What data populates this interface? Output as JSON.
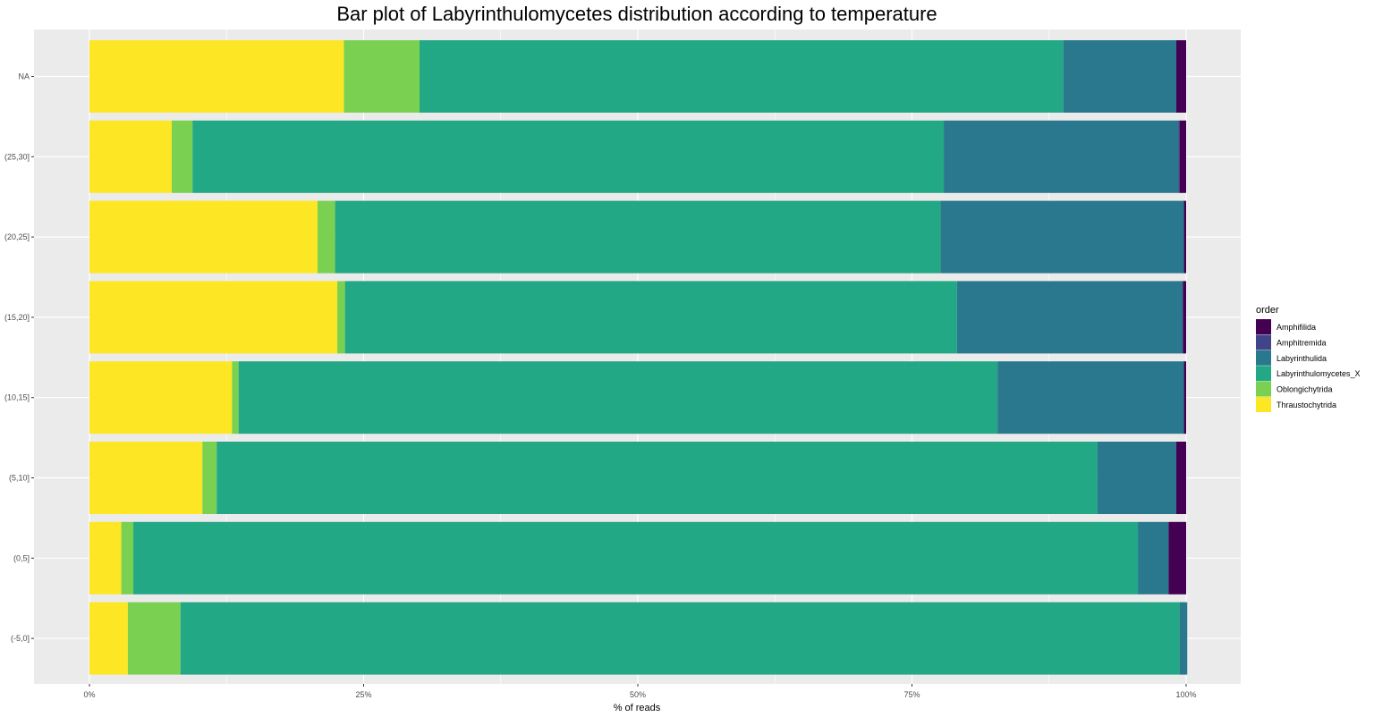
{
  "chart_data": {
    "type": "bar",
    "orientation": "horizontal",
    "stacked": true,
    "title": "Bar plot of Labyrinthulomycetes distribution according to temperature",
    "xlabel": "% of reads",
    "ylabel": "",
    "xlim": [
      0,
      1
    ],
    "x_ticks": [
      "0%",
      "25%",
      "50%",
      "75%",
      "100%"
    ],
    "grid": true,
    "legend_title": "order",
    "legend_position": "right",
    "categories": [
      "NA",
      "(25,30]",
      "(20,25]",
      "(15,20]",
      "(10,15]",
      "(5,10]",
      "(0,5]",
      "(-5,0]"
    ],
    "series": [
      {
        "name": "Thraustochytrida",
        "color": "#FDE725",
        "values": [
          0.232,
          0.075,
          0.208,
          0.226,
          0.13,
          0.103,
          0.029,
          0.035
        ]
      },
      {
        "name": "Oblongichytrida",
        "color": "#7AD151",
        "values": [
          0.069,
          0.019,
          0.016,
          0.007,
          0.006,
          0.013,
          0.011,
          0.048
        ]
      },
      {
        "name": "Labyrinthulomycetes_X",
        "color": "#22A884",
        "values": [
          0.587,
          0.685,
          0.552,
          0.558,
          0.692,
          0.803,
          0.916,
          0.911
        ]
      },
      {
        "name": "Labyrinthulida",
        "color": "#2A788E",
        "values": [
          0.103,
          0.214,
          0.222,
          0.206,
          0.17,
          0.072,
          0.028,
          0.007
        ]
      },
      {
        "name": "Amphitremida",
        "color": "#414487",
        "values": [
          0.0,
          0.001,
          0.0,
          0.0,
          0.0,
          0.0,
          0.0,
          0.0
        ]
      },
      {
        "name": "Amphifilida",
        "color": "#440154",
        "values": [
          0.009,
          0.006,
          0.002,
          0.003,
          0.002,
          0.009,
          0.016,
          0.0
        ]
      }
    ],
    "legend_order": [
      "Amphifilida",
      "Amphitremida",
      "Labyrinthulida",
      "Labyrinthulomycetes_X",
      "Oblongichytrida",
      "Thraustochytrida"
    ]
  }
}
